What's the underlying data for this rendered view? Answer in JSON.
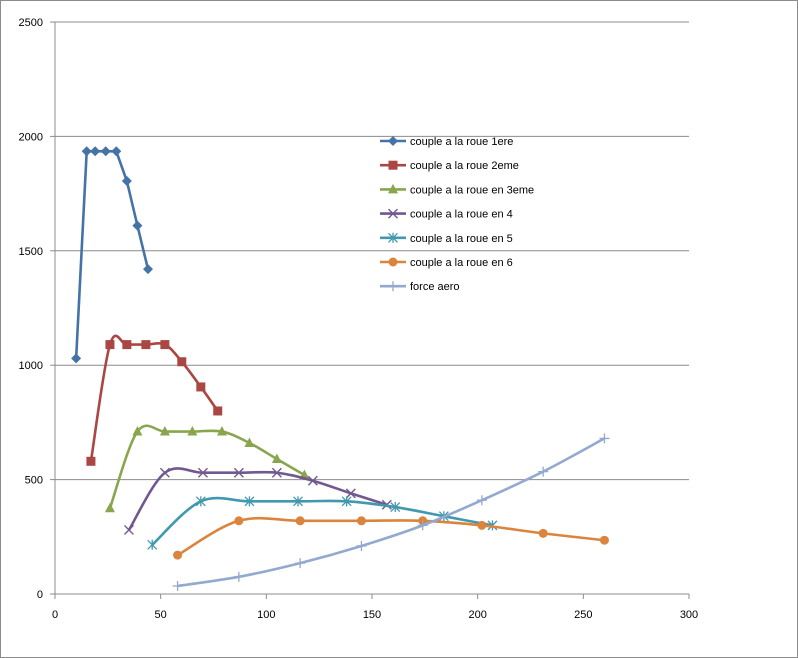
{
  "chart_data": {
    "type": "line",
    "title": "",
    "xlabel": "",
    "ylabel": "",
    "xlim": [
      0,
      300
    ],
    "ylim": [
      0,
      2500
    ],
    "xticks": [
      0,
      50,
      100,
      150,
      200,
      250,
      300
    ],
    "yticks": [
      0,
      500,
      1000,
      1500,
      2000,
      2500
    ],
    "grid": "horizontal",
    "legend_position": "right",
    "series": [
      {
        "name": "couple a la roue 1ere",
        "color": "#4572A7",
        "marker": "diamond",
        "smooth": false,
        "x": [
          10,
          15,
          19,
          24,
          29,
          34,
          39,
          44
        ],
        "y": [
          1030,
          1935,
          1935,
          1935,
          1935,
          1805,
          1610,
          1420
        ]
      },
      {
        "name": "couple a la roue 2eme",
        "color": "#AA4643",
        "marker": "square",
        "smooth": true,
        "x": [
          17,
          26,
          34,
          43,
          52,
          60,
          69,
          77
        ],
        "y": [
          580,
          1090,
          1090,
          1090,
          1090,
          1015,
          905,
          800
        ]
      },
      {
        "name": "couple a la roue en 3eme",
        "color": "#89A54E",
        "marker": "triangle",
        "smooth": true,
        "x": [
          26,
          39,
          52,
          65,
          79,
          92,
          105,
          118
        ],
        "y": [
          375,
          710,
          710,
          710,
          710,
          660,
          590,
          520
        ]
      },
      {
        "name": "couple a la roue en 4",
        "color": "#71588F",
        "marker": "x",
        "smooth": true,
        "x": [
          35,
          52,
          70,
          87,
          105,
          122,
          140,
          157
        ],
        "y": [
          280,
          530,
          530,
          530,
          530,
          495,
          440,
          390
        ]
      },
      {
        "name": "couple a la roue en 5",
        "color": "#4198AF",
        "marker": "asterisk",
        "smooth": true,
        "x": [
          46,
          69,
          92,
          115,
          138,
          161,
          184,
          207
        ],
        "y": [
          215,
          405,
          405,
          405,
          405,
          380,
          340,
          300
        ]
      },
      {
        "name": "couple a la roue en 6",
        "color": "#DB843D",
        "marker": "circle",
        "smooth": true,
        "x": [
          58,
          87,
          116,
          145,
          174,
          202,
          231,
          260
        ],
        "y": [
          170,
          320,
          320,
          320,
          320,
          300,
          265,
          235
        ]
      },
      {
        "name": "force aero",
        "color": "#93A9CF",
        "marker": "plus",
        "smooth": true,
        "x": [
          58,
          87,
          116,
          145,
          174,
          202,
          231,
          260
        ],
        "y": [
          35,
          75,
          135,
          210,
          300,
          410,
          535,
          680
        ]
      }
    ]
  }
}
